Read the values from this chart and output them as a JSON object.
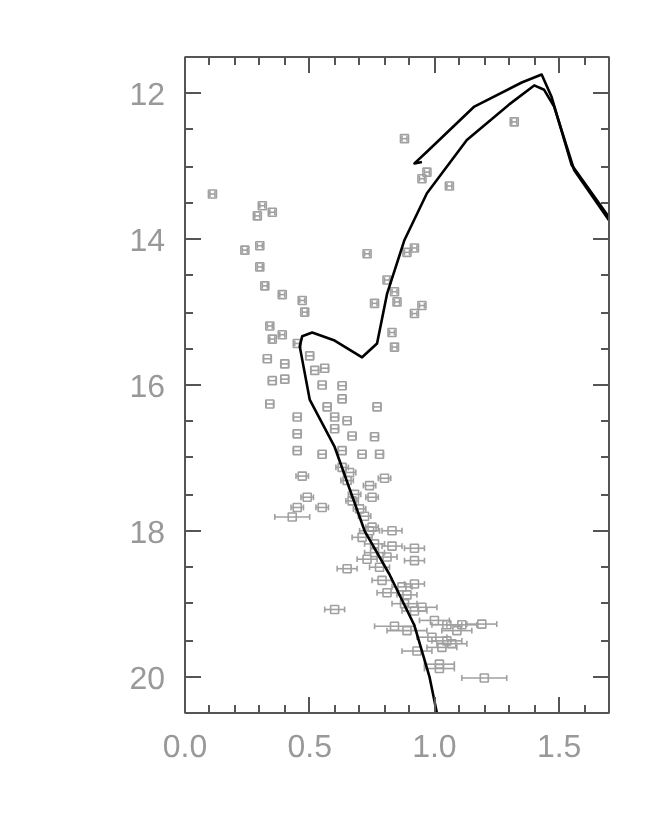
{
  "chart_data": {
    "type": "scatter",
    "xlim": [
      0,
      1.7
    ],
    "ylim": [
      20.5,
      11.5
    ],
    "xticks": [
      {
        "value": 0,
        "label": "0.0"
      },
      {
        "value": 0.1,
        "label": null
      },
      {
        "value": 0.2,
        "label": null
      },
      {
        "value": 0.3,
        "label": null
      },
      {
        "value": 0.4,
        "label": null
      },
      {
        "value": 0.5,
        "label": "0.5"
      },
      {
        "value": 0.6,
        "label": null
      },
      {
        "value": 0.7,
        "label": null
      },
      {
        "value": 0.8,
        "label": null
      },
      {
        "value": 0.9,
        "label": null
      },
      {
        "value": 1.0,
        "label": "1.0"
      },
      {
        "value": 1.1,
        "label": null
      },
      {
        "value": 1.2,
        "label": null
      },
      {
        "value": 1.3,
        "label": null
      },
      {
        "value": 1.4,
        "label": null
      },
      {
        "value": 1.5,
        "label": "1.5"
      },
      {
        "value": 1.6,
        "label": null
      }
    ],
    "yticks": [
      {
        "value": 11.5,
        "label": null
      },
      12,
      {
        "value": 12.5,
        "label": null
      },
      {
        "value": 13,
        "label": null
      },
      {
        "value": 13.5,
        "label": null
      },
      14,
      {
        "value": 14.5,
        "label": null
      },
      {
        "value": 15,
        "label": null
      },
      {
        "value": 15.5,
        "label": null
      },
      16,
      {
        "value": 16.5,
        "label": null
      },
      {
        "value": 17,
        "label": null
      },
      {
        "value": 17.5,
        "label": null
      },
      18,
      {
        "value": 18.5,
        "label": null
      },
      {
        "value": 19,
        "label": null
      },
      {
        "value": 19.5,
        "label": null
      },
      20
    ],
    "grid": false,
    "series": [
      {
        "marker": "square",
        "color": "#a0a0a0",
        "x": [
          0.88,
          1.32,
          0.95,
          0.97,
          1.06,
          0.11,
          0.31,
          0.29,
          0.35,
          0.24,
          0.3,
          0.3,
          0.73,
          0.89,
          0.92,
          0.32,
          0.39,
          0.81,
          0.84,
          0.47,
          0.48,
          0.76,
          0.85,
          0.95,
          0.92,
          0.83,
          0.34,
          0.39,
          0.35,
          0.45,
          0.84,
          0.56,
          0.33,
          0.4,
          0.35,
          0.4,
          0.63,
          0.63,
          0.34,
          0.77,
          0.45,
          0.6,
          0.45,
          0.65,
          0.67,
          0.76,
          0.45,
          0.55,
          0.71,
          0.78,
          0.63,
          0.47,
          0.65,
          0.8,
          0.74,
          0.49,
          0.75,
          0.43,
          0.45,
          0.55,
          0.67,
          0.75,
          0.83,
          0.71,
          0.76,
          0.92,
          0.83,
          0.65,
          0.73,
          0.81,
          0.92,
          0.5,
          0.52,
          0.55,
          0.57,
          0.6,
          0.63,
          0.66,
          0.68,
          0.7,
          0.72,
          0.74,
          0.76,
          0.78,
          0.79,
          0.87,
          0.92,
          0.81,
          0.89,
          0.95,
          0.6,
          0.84,
          1.0,
          1.05,
          1.11,
          1.19,
          0.89,
          0.99,
          1.05,
          1.09,
          1.03,
          1.07,
          0.93,
          1.02,
          1.02,
          1.2,
          0.92,
          0.88
        ],
        "values": [
          12.62,
          12.39,
          13.17,
          13.08,
          13.27,
          13.38,
          13.54,
          13.68,
          13.63,
          14.15,
          14.09,
          14.38,
          14.2,
          14.18,
          14.12,
          14.64,
          14.76,
          14.56,
          14.72,
          14.84,
          15.0,
          14.88,
          14.86,
          14.91,
          15.02,
          15.28,
          15.19,
          15.31,
          15.37,
          15.43,
          15.48,
          15.77,
          15.64,
          15.71,
          15.94,
          15.92,
          16.01,
          16.19,
          16.26,
          16.3,
          16.44,
          16.44,
          16.67,
          16.49,
          16.7,
          16.71,
          16.9,
          16.95,
          16.95,
          16.95,
          17.13,
          17.25,
          17.31,
          17.28,
          17.38,
          17.54,
          17.54,
          17.81,
          17.68,
          17.68,
          17.59,
          17.95,
          18.0,
          18.09,
          18.18,
          18.24,
          18.21,
          18.52,
          18.39,
          18.36,
          18.41,
          15.6,
          15.8,
          16.0,
          16.3,
          16.6,
          16.9,
          17.2,
          17.5,
          17.7,
          17.8,
          18.0,
          18.3,
          18.5,
          18.68,
          18.77,
          18.73,
          18.85,
          18.88,
          19.05,
          19.08,
          19.31,
          19.23,
          19.29,
          19.29,
          19.28,
          19.37,
          19.46,
          19.51,
          19.37,
          19.6,
          19.55,
          19.65,
          19.83,
          19.89,
          20.02,
          19.1,
          19.0
        ],
        "xerrors": [
          0.01,
          0.01,
          0.01,
          0.01,
          0.01,
          0.01,
          0.01,
          0.01,
          0.01,
          0.01,
          0.01,
          0.01,
          0.01,
          0.01,
          0.01,
          0.01,
          0.01,
          0.01,
          0.01,
          0.01,
          0.01,
          0.01,
          0.01,
          0.01,
          0.01,
          0.01,
          0.01,
          0.01,
          0.01,
          0.01,
          0.01,
          0.015,
          0.015,
          0.015,
          0.015,
          0.015,
          0.015,
          0.015,
          0.015,
          0.015,
          0.015,
          0.015,
          0.015,
          0.015,
          0.015,
          0.015,
          0.015,
          0.015,
          0.015,
          0.015,
          0.025,
          0.025,
          0.025,
          0.025,
          0.025,
          0.025,
          0.025,
          0.07,
          0.025,
          0.025,
          0.025,
          0.025,
          0.04,
          0.04,
          0.04,
          0.04,
          0.04,
          0.04,
          0.04,
          0.04,
          0.04,
          0.015,
          0.015,
          0.015,
          0.015,
          0.015,
          0.015,
          0.025,
          0.025,
          0.025,
          0.025,
          0.04,
          0.04,
          0.04,
          0.04,
          0.04,
          0.04,
          0.04,
          0.04,
          0.06,
          0.04,
          0.08,
          0.06,
          0.06,
          0.06,
          0.06,
          0.08,
          0.06,
          0.06,
          0.06,
          0.06,
          0.06,
          0.06,
          0.06,
          0.06,
          0.09,
          0.05,
          0.05
        ]
      },
      {
        "type": "line",
        "color": "#000000",
        "x": [
          1.01,
          0.98,
          0.92,
          0.82,
          0.72,
          0.6,
          0.5,
          0.46,
          0.47,
          0.51,
          0.6,
          0.71,
          0.77,
          0.81,
          0.88,
          0.97,
          1.13,
          1.3,
          1.4,
          1.44,
          1.48,
          1.56,
          1.7
        ],
        "values": [
          20.5,
          20.0,
          19.3,
          18.6,
          18.0,
          16.85,
          16.2,
          15.47,
          15.33,
          15.28,
          15.39,
          15.62,
          15.43,
          14.75,
          14.01,
          13.37,
          12.64,
          12.15,
          11.89,
          11.95,
          12.18,
          13.05,
          13.74
        ]
      },
      {
        "type": "line",
        "color": "#000000",
        "x": [
          0.95,
          0.92,
          0.97,
          1.16,
          1.35,
          1.43,
          1.47,
          1.55,
          1.7
        ],
        "values": [
          12.94,
          12.96,
          12.8,
          12.18,
          11.85,
          11.74,
          12.05,
          12.98,
          13.7
        ]
      }
    ]
  }
}
